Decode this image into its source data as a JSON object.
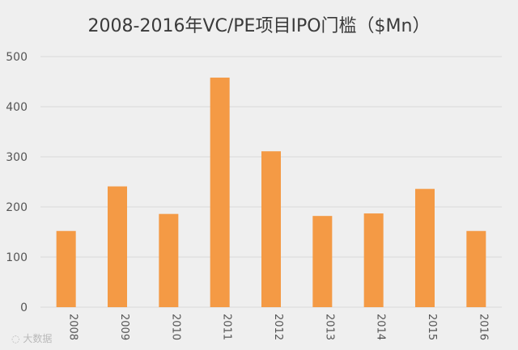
{
  "chart_data": {
    "type": "bar",
    "title": "2008-2016年VC/PE项目IPO门槛（$Mn）",
    "categories": [
      "2008",
      "2009",
      "2010",
      "2011",
      "2012",
      "2013",
      "2014",
      "2015",
      "2016"
    ],
    "values": [
      152,
      241,
      186,
      458,
      311,
      182,
      187,
      236,
      152
    ],
    "xlabel": "",
    "ylabel": "",
    "ylim": [
      0,
      500
    ],
    "yticks": [
      "0",
      "100",
      "200",
      "300",
      "400",
      "500"
    ],
    "grid": true,
    "legend": "none",
    "bar_color": "#f49a45",
    "grid_color": "#d9d9d9",
    "background_color": "#efefef"
  },
  "watermark": {
    "text": "大数据"
  }
}
